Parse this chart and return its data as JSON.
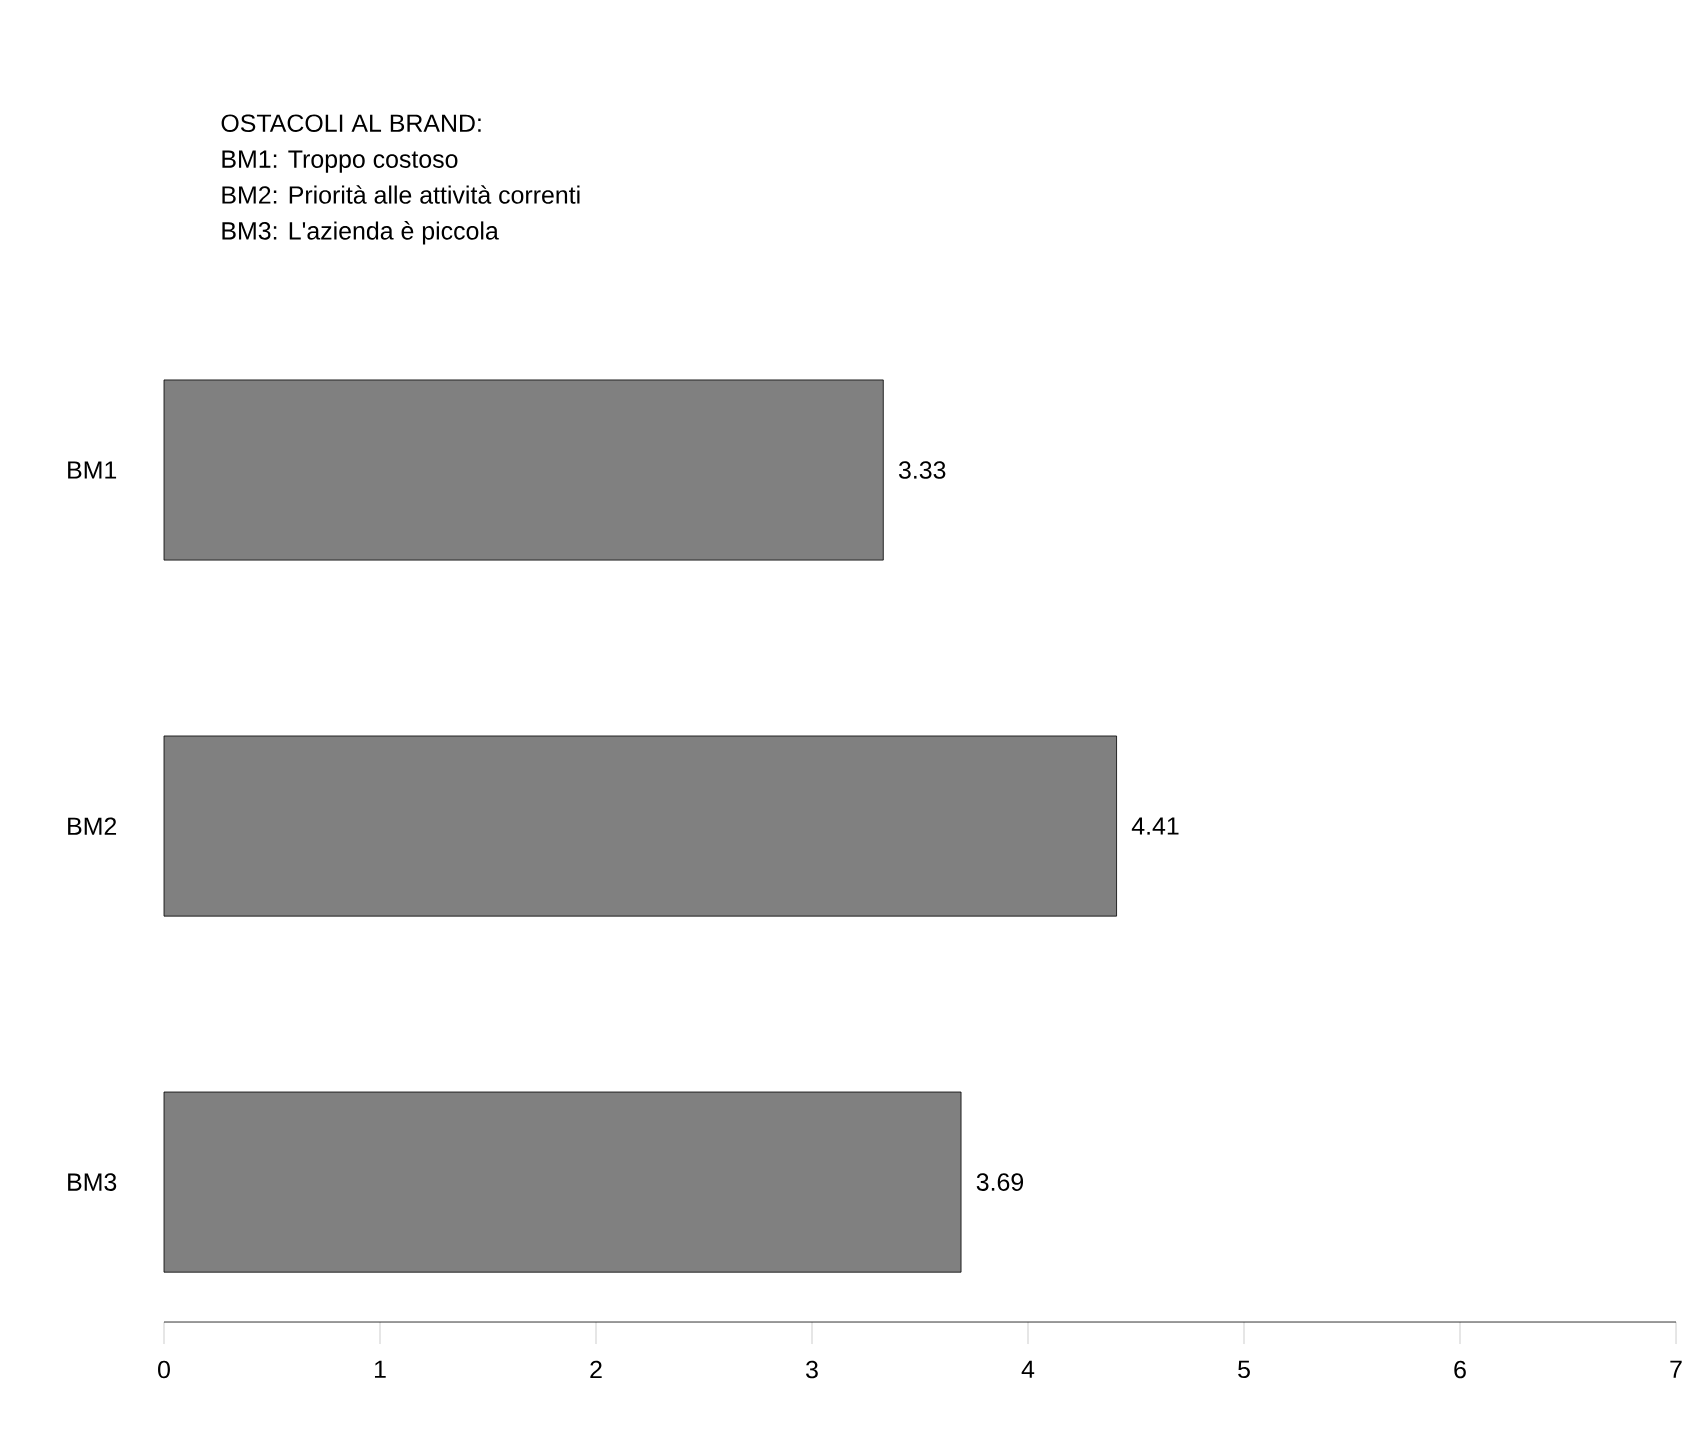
{
  "chart_data": {
    "type": "bar",
    "orientation": "horizontal",
    "title": "OSTACOLI AL BRAND:",
    "annotations": [
      "BM1: Troppo costoso",
      "BM2: Priorità alle attività correnti",
      "BM3: L'azienda è piccola"
    ],
    "categories": [
      "BM1",
      "BM2",
      "BM3"
    ],
    "values": [
      3.33,
      4.41,
      3.69
    ],
    "color": "#808080",
    "xlim": [
      0,
      7
    ],
    "xticks": [
      0,
      1,
      2,
      3,
      4,
      5,
      6,
      7
    ],
    "data_labels": true,
    "grid": false
  }
}
